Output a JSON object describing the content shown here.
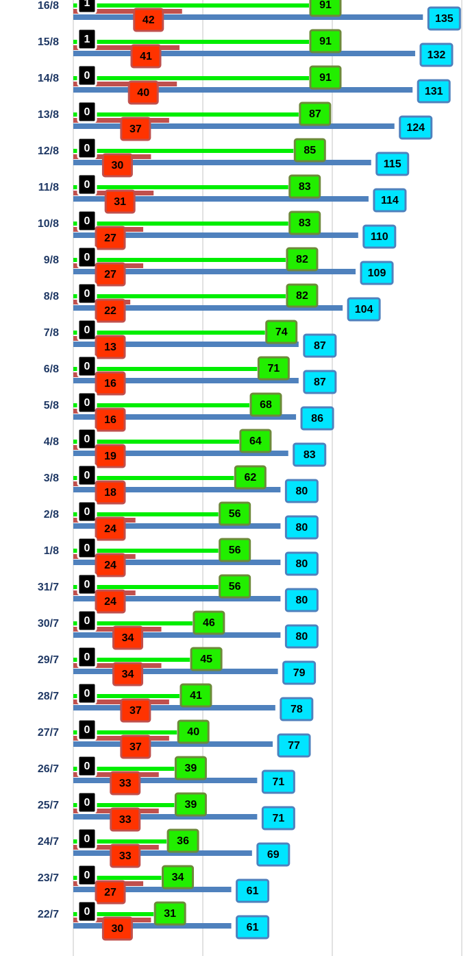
{
  "chart_data": {
    "type": "hbar",
    "categories": [
      "16/8",
      "15/8",
      "14/8",
      "13/8",
      "12/8",
      "11/8",
      "10/8",
      "9/8",
      "8/8",
      "7/8",
      "6/8",
      "5/8",
      "4/8",
      "3/8",
      "2/8",
      "1/8",
      "31/7",
      "30/7",
      "29/7",
      "28/7",
      "27/7",
      "26/7",
      "25/7",
      "24/7",
      "23/7",
      "22/7"
    ],
    "series": [
      {
        "color": "#000000",
        "label_color": "#ffffff",
        "box_color": "#000000",
        "box_border": "#ffffff",
        "values": [
          1,
          1,
          0,
          0,
          0,
          0,
          0,
          0,
          0,
          0,
          0,
          0,
          0,
          0,
          0,
          0,
          0,
          0,
          0,
          0,
          0,
          0,
          0,
          0,
          0,
          0
        ]
      },
      {
        "color": "#c0504d",
        "label_color": "#000000",
        "box_color": "#ff3300",
        "box_border": "#c0504d",
        "values": [
          42,
          41,
          40,
          37,
          30,
          31,
          27,
          27,
          22,
          13,
          16,
          16,
          19,
          18,
          24,
          24,
          24,
          34,
          34,
          37,
          37,
          33,
          33,
          33,
          27,
          30
        ]
      },
      {
        "color": "#00ee00",
        "label_color": "#000000",
        "box_color": "#22ee00",
        "box_border": "#6d8a3a",
        "values": [
          91,
          91,
          91,
          87,
          85,
          83,
          83,
          82,
          82,
          74,
          71,
          68,
          64,
          62,
          56,
          56,
          56,
          46,
          45,
          41,
          40,
          39,
          39,
          36,
          34,
          31
        ]
      },
      {
        "color": "#4f81bd",
        "label_color": "#000000",
        "box_color": "#00e5ff",
        "box_border": "#4f81bd",
        "values": [
          135,
          132,
          131,
          124,
          115,
          114,
          110,
          109,
          104,
          87,
          87,
          86,
          83,
          80,
          80,
          80,
          80,
          80,
          79,
          78,
          77,
          71,
          71,
          69,
          61,
          61
        ]
      }
    ],
    "xlim": [
      0,
      150
    ],
    "xticks": [
      0,
      50,
      100,
      150
    ],
    "grid": true
  }
}
